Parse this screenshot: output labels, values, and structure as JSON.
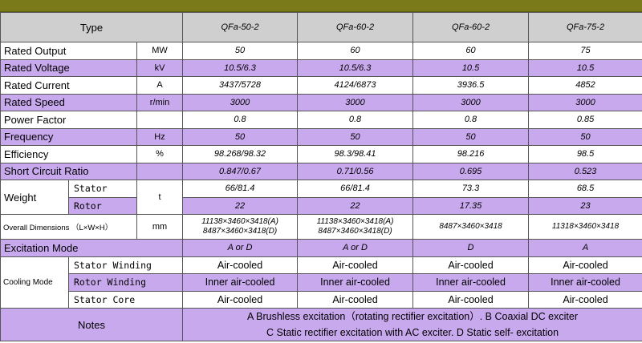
{
  "header": {
    "type_label": "Type",
    "models": [
      "QFa-50-2",
      "QFa-60-2",
      "QFa-60-2",
      "QFa-75-2"
    ]
  },
  "rows": [
    {
      "label": "Rated Output",
      "unit": "MW",
      "values": [
        "50",
        "60",
        "60",
        "75"
      ]
    },
    {
      "label": "Rated Voltage",
      "unit": "kV",
      "values": [
        "10.5/6.3",
        "10.5/6.3",
        "10.5",
        "10.5"
      ]
    },
    {
      "label": "Rated Current",
      "unit": "A",
      "values": [
        "3437/5728",
        "4124/6873",
        "3936.5",
        "4852"
      ]
    },
    {
      "label": "Rated Speed",
      "unit": "r/min",
      "values": [
        "3000",
        "3000",
        "3000",
        "3000"
      ]
    },
    {
      "label": "Power Factor",
      "unit": "",
      "values": [
        "0.8",
        "0.8",
        "0.8",
        "0.85"
      ]
    },
    {
      "label": "Frequency",
      "unit": "Hz",
      "values": [
        "50",
        "50",
        "50",
        "50"
      ]
    },
    {
      "label": "Efficiency",
      "unit": "%",
      "values": [
        "98.268/98.32",
        "98.3/98.41",
        "98.216",
        "98.5"
      ]
    },
    {
      "label": "Short Circuit Ratio",
      "unit": "",
      "values": [
        "0.847/0.67",
        "0.71/0.56",
        "0.695",
        "0.523"
      ]
    }
  ],
  "weight": {
    "label": "Weight",
    "unit": "t",
    "stator_label": "Stator",
    "rotor_label": "Rotor",
    "stator_values": [
      "66/81.4",
      "66/81.4",
      "73.3",
      "68.5"
    ],
    "rotor_values": [
      "22",
      "22",
      "17.35",
      "23"
    ]
  },
  "dimensions": {
    "label": "Overall Dimensions （L×W×H）",
    "unit": "mm",
    "values": [
      [
        "11138×3460×3418(A)",
        "8487×3460×3418(D)"
      ],
      [
        "11138×3460×3418(A)",
        "8487×3460×3418(D)"
      ],
      [
        "8487×3460×3418",
        ""
      ],
      [
        "11318×3460×3418",
        ""
      ]
    ]
  },
  "excitation": {
    "label": "Excitation Mode",
    "values": [
      "A or D",
      "A or D",
      "D",
      "A"
    ]
  },
  "cooling": {
    "label": "Cooling Mode",
    "stator_winding_label": "Stator Winding",
    "rotor_winding_label": "Rotor Winding",
    "stator_core_label": "Stator Core",
    "stator_winding": [
      "Air-cooled",
      "Air-cooled",
      "Air-cooled",
      "Air-cooled"
    ],
    "rotor_winding": [
      "Inner air-cooled",
      "Inner air-cooled",
      "Inner air-cooled",
      "Inner air-cooled"
    ],
    "stator_core": [
      "Air-cooled",
      "Air-cooled",
      "Air-cooled",
      "Air-cooled"
    ]
  },
  "notes": {
    "label": "Notes",
    "line1": "A Brushless excitation（rotating rectifier excitation）. B Coaxial DC exciter",
    "line2": "C Static rectifier excitation with AC exciter. D Static self- excitation"
  },
  "colors": {
    "top_bar": "#7a7a1a",
    "header_bg": "#cfcfcf",
    "purple_row": "#c9a9ee",
    "white_row": "#ffffff"
  }
}
